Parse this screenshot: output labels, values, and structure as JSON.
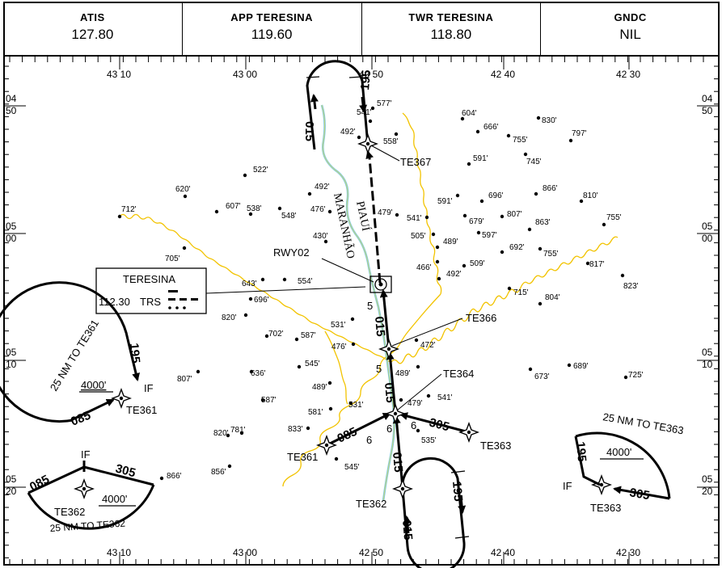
{
  "header": {
    "cells": [
      {
        "label": "ATIS",
        "value": "127.80"
      },
      {
        "label": "APP  TERESINA",
        "value": "119.60"
      },
      {
        "label": "TWR  TERESINA",
        "value": "118.80"
      },
      {
        "label": "GNDC",
        "value": "NIL"
      }
    ]
  },
  "coordinates": {
    "top_lon": [
      "43 10",
      "43 00",
      "42 50",
      "42 40",
      "42 30"
    ],
    "bottom_lon": [
      "43 10",
      "43 00",
      "42 50",
      "42 40",
      "42 30"
    ],
    "lat": [
      [
        "04",
        "50"
      ],
      [
        "05",
        "00"
      ],
      [
        "05",
        "10"
      ],
      [
        "05",
        "20"
      ]
    ]
  },
  "fixes": {
    "te367": "TE367",
    "te366": "TE366",
    "te364": "TE364",
    "te363": "TE363",
    "te361": "TE361",
    "te362": "TE362",
    "rwy": "RWY02"
  },
  "navaid": {
    "name": "TERESINA",
    "freq": "112.30",
    "ident": "TRS"
  },
  "rivers": {
    "piaui": "PIAUÍ",
    "maranhao": "MARANHÃO"
  },
  "courses": {
    "c015": "015",
    "c195": "195",
    "c085": "085",
    "c305": "305",
    "seg5": "5",
    "seg6": "6"
  },
  "taa": {
    "te361": {
      "altitude": "4000'",
      "arc_text": "25  NM TO TE361",
      "if": "IF",
      "fix": "TE361",
      "course_in": "195",
      "course_out": "085"
    },
    "te362": {
      "altitude": "4000'",
      "arc_text": "25  NM TO TE362",
      "if": "IF",
      "fix": "TE362",
      "course_left": "085",
      "course_right": "305"
    },
    "te363": {
      "altitude": "4000'",
      "arc_text": "25  NM TO TE363",
      "if": "IF",
      "fix": "TE363",
      "course_in": "195",
      "course_out": "305"
    }
  },
  "spot_elevations": [
    "577'",
    "541'",
    "492'",
    "558'",
    "604'",
    "830'",
    "666'",
    "755'",
    "797'",
    "745'",
    "591'",
    "522'",
    "620'",
    "712'",
    "607'",
    "538'",
    "548'",
    "492'",
    "476'",
    "479'",
    "541'",
    "591'",
    "696'",
    "866'",
    "810'",
    "679'",
    "807'",
    "597'",
    "863'",
    "755'",
    "505'",
    "489'",
    "692'",
    "755'",
    "705'",
    "430'",
    "466'",
    "509'",
    "817'",
    "823'",
    "554'",
    "492'",
    "643'",
    "696'",
    "715'",
    "820'",
    "804'",
    "531'",
    "702'",
    "587'",
    "476'",
    "472'",
    "545'",
    "489'",
    "636'",
    "807'",
    "489'",
    "673'",
    "689'",
    "725'",
    "587'",
    "541'",
    "479'",
    "581'",
    "531'",
    "833'",
    "820'",
    "781'",
    "535'",
    "545'",
    "856'",
    "866'"
  ]
}
